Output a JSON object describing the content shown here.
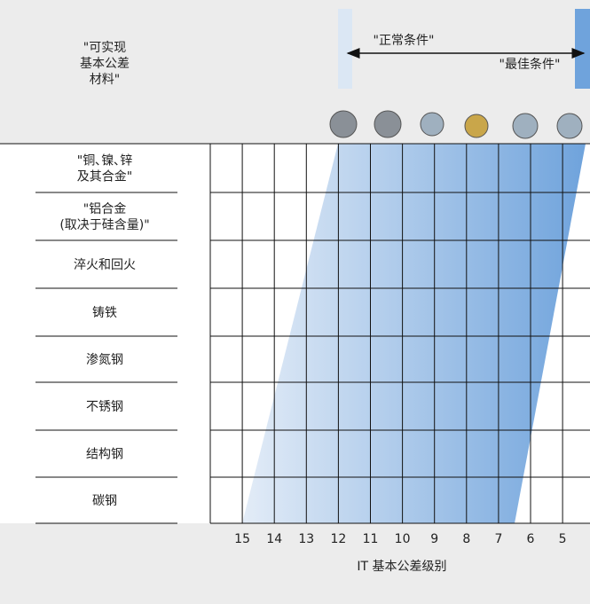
{
  "header": {
    "label_lines": [
      "\"可实现",
      "基本公差",
      "材料\""
    ],
    "normal_condition": "\"正常条件\"",
    "best_condition": "\"最佳条件\""
  },
  "table": {
    "rows": [
      [
        "\"铜､镍､锌",
        "及其合金\""
      ],
      [
        "\"铝合金",
        "(取决于硅含量)\""
      ],
      [
        "淬火和回火"
      ],
      [
        "铸铁"
      ],
      [
        "渗氮钢"
      ],
      [
        "不锈钢"
      ],
      [
        "结构钢"
      ],
      [
        "碳钢"
      ]
    ]
  },
  "axis": {
    "ticks": [
      "15",
      "14",
      "13",
      "12",
      "11",
      "10",
      "9",
      "8",
      "7",
      "6",
      "5"
    ],
    "title": "IT 基本公差级别"
  }
}
